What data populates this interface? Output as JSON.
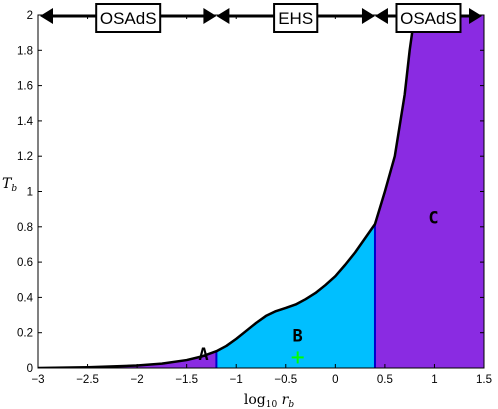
{
  "chart_data": {
    "type": "area",
    "xlabel": "log₁₀ r_b",
    "ylabel": "T_b",
    "xlim": [
      -3,
      1.5
    ],
    "ylim": [
      0,
      2
    ],
    "x_ticks": [
      -3,
      -2.5,
      -2,
      -1.5,
      -1,
      -0.5,
      0,
      0.5,
      1,
      1.5
    ],
    "x_tick_labels": [
      "−3",
      "−2.5",
      "−2",
      "−1.5",
      "−1",
      "−0.5",
      "0",
      "0.5",
      "1",
      "1.5"
    ],
    "y_ticks": [
      0,
      0.2,
      0.4,
      0.6,
      0.8,
      1,
      1.2,
      1.4,
      1.6,
      1.8,
      2
    ],
    "y_tick_labels": [
      "0",
      "0.2",
      "0.4",
      "0.6",
      "0.8",
      "1",
      "1.2",
      "1.4",
      "1.6",
      "1.8",
      "2"
    ],
    "grid": false,
    "curve": {
      "x": [
        -3,
        -2.5,
        -2,
        -1.75,
        -1.5,
        -1.35,
        -1.2,
        -1.1,
        -1.0,
        -0.9,
        -0.8,
        -0.7,
        -0.6,
        -0.5,
        -0.4,
        -0.3,
        -0.2,
        -0.1,
        0,
        0.1,
        0.2,
        0.3,
        0.4,
        0.5,
        0.6,
        0.7,
        0.75,
        0.8
      ],
      "y": [
        0.0,
        0.004,
        0.014,
        0.025,
        0.045,
        0.065,
        0.095,
        0.125,
        0.165,
        0.21,
        0.255,
        0.295,
        0.322,
        0.34,
        0.36,
        0.39,
        0.425,
        0.47,
        0.52,
        0.585,
        0.655,
        0.735,
        0.815,
        1.0,
        1.2,
        1.55,
        1.8,
        2.0
      ]
    },
    "regions": [
      {
        "label": "A",
        "x_start": -3,
        "x_end": -1.2,
        "color": "#8a2be2"
      },
      {
        "label": "B",
        "x_start": -1.2,
        "x_end": 0.4,
        "color": "#00bfff"
      },
      {
        "label": "C",
        "x_start": 0.4,
        "x_end": 1.5,
        "color": "#8a2be2"
      }
    ],
    "region_label_positions": [
      {
        "label": "A",
        "x": -1.33,
        "y": 0.045
      },
      {
        "label": "B",
        "x": -0.38,
        "y": 0.15
      },
      {
        "label": "C",
        "x": 0.99,
        "y": 0.82
      }
    ],
    "marker": {
      "x": -0.38,
      "y": 0.06,
      "symbol": "+",
      "color": "#00ff00"
    },
    "phases": [
      {
        "label": "OSAdS",
        "x_start": -3,
        "x_end": -1.2
      },
      {
        "label": "EHS",
        "x_start": -1.2,
        "x_end": 0.4
      },
      {
        "label": "OSAdS",
        "x_start": 0.4,
        "x_end": 1.5
      }
    ],
    "colors": {
      "region_purple": "#8a2be2",
      "region_blue": "#00bfff",
      "boundary_line": "#0000cd",
      "marker": "#00ff00"
    }
  }
}
